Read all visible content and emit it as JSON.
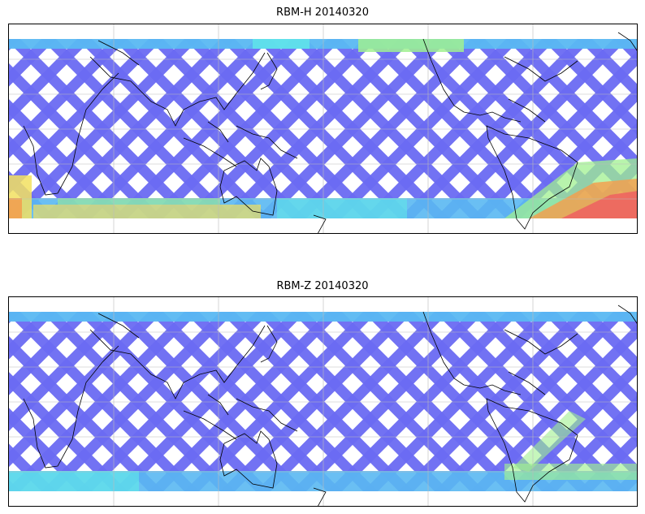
{
  "maps": [
    {
      "title": "RBM-H 20140320",
      "variant": "H",
      "colormap": "jet",
      "colors": {
        "low": "#6a6af2",
        "mid": "#5ab8f2",
        "cyan": "#60e8e8",
        "green": "#a0f090",
        "yellow": "#f2e060",
        "orange": "#f2a050",
        "high": "#ee6060"
      }
    },
    {
      "title": "RBM-Z 20140320",
      "variant": "Z",
      "colormap": "jet",
      "colors": {
        "low": "#6a6af2",
        "mid": "#5ab8f2",
        "cyan": "#60e8e8",
        "green": "#a0f090",
        "yellow": "#f2e060",
        "orange": "#f2a050",
        "high": "#ee6060"
      }
    }
  ],
  "gridlines": true,
  "coastline_color": "#000000"
}
